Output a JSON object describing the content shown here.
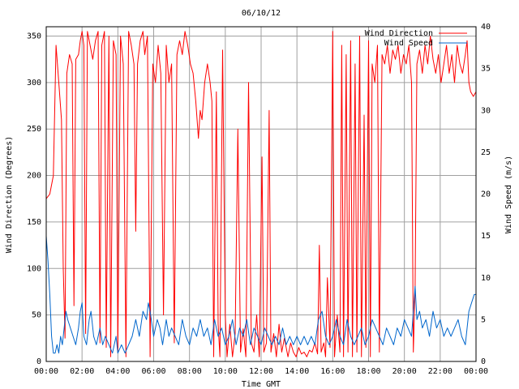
{
  "chart_data": {
    "type": "line",
    "title": "06/10/12",
    "xlabel": "Time GMT",
    "ylabel": "Wind Direction (Degrees)",
    "y2label": "Wind Speed (m/s)",
    "xlim_hours": [
      0,
      24
    ],
    "ylim": [
      0,
      360
    ],
    "y2lim": [
      0,
      40
    ],
    "x_ticks": [
      "00:00",
      "02:00",
      "04:00",
      "06:00",
      "08:00",
      "10:00",
      "12:00",
      "14:00",
      "16:00",
      "18:00",
      "20:00",
      "22:00",
      "00:00"
    ],
    "y_ticks": [
      "0",
      "50",
      "100",
      "150",
      "200",
      "250",
      "300",
      "350"
    ],
    "y2_ticks": [
      "0",
      "5",
      "10",
      "15",
      "20",
      "25",
      "30",
      "35",
      "40"
    ],
    "grid": true,
    "legend": "top-right",
    "series": [
      {
        "name": "Wind Direction",
        "color": "#ff0000",
        "axis": "left",
        "keypoints": [
          [
            0.0,
            175
          ],
          [
            0.2,
            180
          ],
          [
            0.4,
            200
          ],
          [
            0.55,
            340
          ],
          [
            0.7,
            300
          ],
          [
            0.85,
            260
          ],
          [
            0.95,
            100
          ],
          [
            1.05,
            25
          ],
          [
            1.15,
            310
          ],
          [
            1.3,
            330
          ],
          [
            1.45,
            320
          ],
          [
            1.55,
            60
          ],
          [
            1.65,
            325
          ],
          [
            1.8,
            330
          ],
          [
            1.9,
            345
          ],
          [
            2.0,
            355
          ],
          [
            2.1,
            340
          ],
          [
            2.2,
            30
          ],
          [
            2.3,
            355
          ],
          [
            2.45,
            340
          ],
          [
            2.6,
            325
          ],
          [
            2.75,
            345
          ],
          [
            2.9,
            355
          ],
          [
            3.0,
            20
          ],
          [
            3.1,
            340
          ],
          [
            3.25,
            355
          ],
          [
            3.35,
            15
          ],
          [
            3.5,
            350
          ],
          [
            3.6,
            5
          ],
          [
            3.75,
            345
          ],
          [
            3.9,
            330
          ],
          [
            4.0,
            10
          ],
          [
            4.15,
            350
          ],
          [
            4.3,
            320
          ],
          [
            4.45,
            5
          ],
          [
            4.6,
            355
          ],
          [
            4.75,
            340
          ],
          [
            4.9,
            320
          ],
          [
            5.0,
            140
          ],
          [
            5.1,
            320
          ],
          [
            5.25,
            345
          ],
          [
            5.4,
            355
          ],
          [
            5.5,
            330
          ],
          [
            5.65,
            350
          ],
          [
            5.8,
            5
          ],
          [
            5.95,
            320
          ],
          [
            6.1,
            300
          ],
          [
            6.25,
            340
          ],
          [
            6.4,
            310
          ],
          [
            6.55,
            50
          ],
          [
            6.7,
            340
          ],
          [
            6.85,
            300
          ],
          [
            7.0,
            320
          ],
          [
            7.15,
            20
          ],
          [
            7.3,
            330
          ],
          [
            7.45,
            345
          ],
          [
            7.6,
            330
          ],
          [
            7.75,
            355
          ],
          [
            7.9,
            340
          ],
          [
            8.05,
            320
          ],
          [
            8.2,
            310
          ],
          [
            8.35,
            280
          ],
          [
            8.5,
            240
          ],
          [
            8.6,
            270
          ],
          [
            8.7,
            260
          ],
          [
            8.85,
            300
          ],
          [
            9.0,
            320
          ],
          [
            9.15,
            300
          ],
          [
            9.25,
            280
          ],
          [
            9.35,
            5
          ],
          [
            9.5,
            290
          ],
          [
            9.6,
            40
          ],
          [
            9.7,
            5
          ],
          [
            9.85,
            335
          ],
          [
            10.0,
            50
          ],
          [
            10.1,
            5
          ],
          [
            10.25,
            40
          ],
          [
            10.4,
            5
          ],
          [
            10.55,
            30
          ],
          [
            10.7,
            250
          ],
          [
            10.85,
            10
          ],
          [
            11.0,
            35
          ],
          [
            11.15,
            5
          ],
          [
            11.3,
            300
          ],
          [
            11.45,
            20
          ],
          [
            11.6,
            10
          ],
          [
            11.75,
            50
          ],
          [
            11.9,
            5
          ],
          [
            12.05,
            220
          ],
          [
            12.15,
            10
          ],
          [
            12.3,
            20
          ],
          [
            12.45,
            270
          ],
          [
            12.55,
            10
          ],
          [
            12.7,
            30
          ],
          [
            12.85,
            5
          ],
          [
            13.0,
            40
          ],
          [
            13.15,
            10
          ],
          [
            13.3,
            25
          ],
          [
            13.5,
            5
          ],
          [
            13.65,
            20
          ],
          [
            13.8,
            10
          ],
          [
            13.95,
            5
          ],
          [
            14.1,
            15
          ],
          [
            14.25,
            8
          ],
          [
            14.4,
            10
          ],
          [
            14.55,
            5
          ],
          [
            14.7,
            12
          ],
          [
            14.85,
            10
          ],
          [
            15.0,
            20
          ],
          [
            15.15,
            8
          ],
          [
            15.25,
            125
          ],
          [
            15.35,
            10
          ],
          [
            15.5,
            20
          ],
          [
            15.6,
            5
          ],
          [
            15.7,
            90
          ],
          [
            15.85,
            15
          ],
          [
            16.0,
            355
          ],
          [
            16.1,
            5
          ],
          [
            16.25,
            50
          ],
          [
            16.4,
            10
          ],
          [
            16.5,
            340
          ],
          [
            16.6,
            5
          ],
          [
            16.75,
            330
          ],
          [
            16.85,
            10
          ],
          [
            17.0,
            345
          ],
          [
            17.1,
            5
          ],
          [
            17.25,
            320
          ],
          [
            17.35,
            10
          ],
          [
            17.5,
            350
          ],
          [
            17.6,
            5
          ],
          [
            17.75,
            265
          ],
          [
            17.85,
            15
          ],
          [
            18.0,
            345
          ],
          [
            18.1,
            5
          ],
          [
            18.2,
            320
          ],
          [
            18.35,
            300
          ],
          [
            18.5,
            340
          ],
          [
            18.6,
            10
          ],
          [
            18.75,
            330
          ],
          [
            18.9,
            320
          ],
          [
            19.05,
            340
          ],
          [
            19.2,
            310
          ],
          [
            19.35,
            335
          ],
          [
            19.5,
            325
          ],
          [
            19.65,
            340
          ],
          [
            19.8,
            310
          ],
          [
            19.95,
            330
          ],
          [
            20.1,
            320
          ],
          [
            20.25,
            340
          ],
          [
            20.4,
            300
          ],
          [
            20.5,
            10
          ],
          [
            20.6,
            80
          ],
          [
            20.7,
            320
          ],
          [
            20.85,
            335
          ],
          [
            21.0,
            310
          ],
          [
            21.15,
            340
          ],
          [
            21.3,
            320
          ],
          [
            21.45,
            350
          ],
          [
            21.6,
            325
          ],
          [
            21.75,
            310
          ],
          [
            21.9,
            330
          ],
          [
            22.05,
            300
          ],
          [
            22.2,
            320
          ],
          [
            22.35,
            340
          ],
          [
            22.5,
            310
          ],
          [
            22.65,
            330
          ],
          [
            22.8,
            300
          ],
          [
            22.95,
            340
          ],
          [
            23.1,
            320
          ],
          [
            23.25,
            310
          ],
          [
            23.4,
            330
          ],
          [
            23.5,
            345
          ],
          [
            23.6,
            300
          ],
          [
            23.7,
            290
          ],
          [
            23.85,
            285
          ],
          [
            24.0,
            290
          ]
        ]
      },
      {
        "name": "Wind Speed",
        "color": "#0066cc",
        "axis": "right",
        "keypoints": [
          [
            0.0,
            15
          ],
          [
            0.1,
            12
          ],
          [
            0.2,
            8
          ],
          [
            0.3,
            3
          ],
          [
            0.4,
            1
          ],
          [
            0.5,
            1
          ],
          [
            0.6,
            2
          ],
          [
            0.7,
            1
          ],
          [
            0.8,
            3
          ],
          [
            0.9,
            2
          ],
          [
            1.0,
            4
          ],
          [
            1.1,
            6
          ],
          [
            1.2,
            5
          ],
          [
            1.35,
            4
          ],
          [
            1.5,
            3
          ],
          [
            1.65,
            2
          ],
          [
            1.8,
            4
          ],
          [
            1.9,
            6
          ],
          [
            2.0,
            7
          ],
          [
            2.1,
            3
          ],
          [
            2.25,
            2
          ],
          [
            2.4,
            5
          ],
          [
            2.5,
            6
          ],
          [
            2.65,
            3
          ],
          [
            2.8,
            2
          ],
          [
            3.0,
            4
          ],
          [
            3.15,
            2
          ],
          [
            3.3,
            3
          ],
          [
            3.5,
            2
          ],
          [
            3.7,
            1
          ],
          [
            3.9,
            3
          ],
          [
            4.0,
            1
          ],
          [
            4.2,
            2
          ],
          [
            4.4,
            1
          ],
          [
            4.6,
            2
          ],
          [
            4.8,
            3
          ],
          [
            5.0,
            5
          ],
          [
            5.2,
            3
          ],
          [
            5.4,
            6
          ],
          [
            5.6,
            5
          ],
          [
            5.7,
            7
          ],
          [
            5.8,
            6
          ],
          [
            6.0,
            3
          ],
          [
            6.2,
            5
          ],
          [
            6.35,
            4
          ],
          [
            6.5,
            2
          ],
          [
            6.7,
            5
          ],
          [
            6.85,
            3
          ],
          [
            7.0,
            4
          ],
          [
            7.2,
            3
          ],
          [
            7.4,
            2
          ],
          [
            7.6,
            5
          ],
          [
            7.8,
            3
          ],
          [
            8.0,
            2
          ],
          [
            8.2,
            4
          ],
          [
            8.4,
            3
          ],
          [
            8.6,
            5
          ],
          [
            8.8,
            3
          ],
          [
            9.0,
            4
          ],
          [
            9.2,
            2
          ],
          [
            9.4,
            5
          ],
          [
            9.6,
            3
          ],
          [
            9.8,
            4
          ],
          [
            10.0,
            2
          ],
          [
            10.2,
            3
          ],
          [
            10.4,
            5
          ],
          [
            10.6,
            2
          ],
          [
            10.8,
            4
          ],
          [
            11.0,
            3
          ],
          [
            11.2,
            5
          ],
          [
            11.4,
            2
          ],
          [
            11.6,
            4
          ],
          [
            11.8,
            3
          ],
          [
            12.0,
            2
          ],
          [
            12.2,
            4
          ],
          [
            12.4,
            3
          ],
          [
            12.6,
            2
          ],
          [
            12.8,
            3
          ],
          [
            13.0,
            2
          ],
          [
            13.2,
            4
          ],
          [
            13.4,
            2
          ],
          [
            13.6,
            3
          ],
          [
            13.8,
            2
          ],
          [
            14.0,
            3
          ],
          [
            14.2,
            2
          ],
          [
            14.4,
            3
          ],
          [
            14.6,
            2
          ],
          [
            14.8,
            3
          ],
          [
            15.0,
            2
          ],
          [
            15.2,
            5
          ],
          [
            15.4,
            6
          ],
          [
            15.6,
            3
          ],
          [
            15.8,
            2
          ],
          [
            16.0,
            3
          ],
          [
            16.2,
            5
          ],
          [
            16.4,
            3
          ],
          [
            16.6,
            2
          ],
          [
            16.8,
            5
          ],
          [
            17.0,
            3
          ],
          [
            17.2,
            2
          ],
          [
            17.4,
            3
          ],
          [
            17.6,
            4
          ],
          [
            17.8,
            2
          ],
          [
            18.0,
            3
          ],
          [
            18.2,
            5
          ],
          [
            18.4,
            4
          ],
          [
            18.6,
            3
          ],
          [
            18.8,
            2
          ],
          [
            19.0,
            4
          ],
          [
            19.2,
            3
          ],
          [
            19.4,
            2
          ],
          [
            19.6,
            4
          ],
          [
            19.8,
            3
          ],
          [
            20.0,
            5
          ],
          [
            20.2,
            4
          ],
          [
            20.4,
            3
          ],
          [
            20.6,
            9
          ],
          [
            20.7,
            5
          ],
          [
            20.85,
            6
          ],
          [
            21.0,
            4
          ],
          [
            21.2,
            5
          ],
          [
            21.4,
            3
          ],
          [
            21.6,
            6
          ],
          [
            21.8,
            4
          ],
          [
            22.0,
            5
          ],
          [
            22.2,
            3
          ],
          [
            22.4,
            4
          ],
          [
            22.6,
            3
          ],
          [
            22.8,
            4
          ],
          [
            23.0,
            5
          ],
          [
            23.2,
            3
          ],
          [
            23.4,
            2
          ],
          [
            23.6,
            6
          ],
          [
            23.75,
            7
          ],
          [
            23.9,
            8
          ],
          [
            24.0,
            8
          ]
        ]
      }
    ]
  }
}
